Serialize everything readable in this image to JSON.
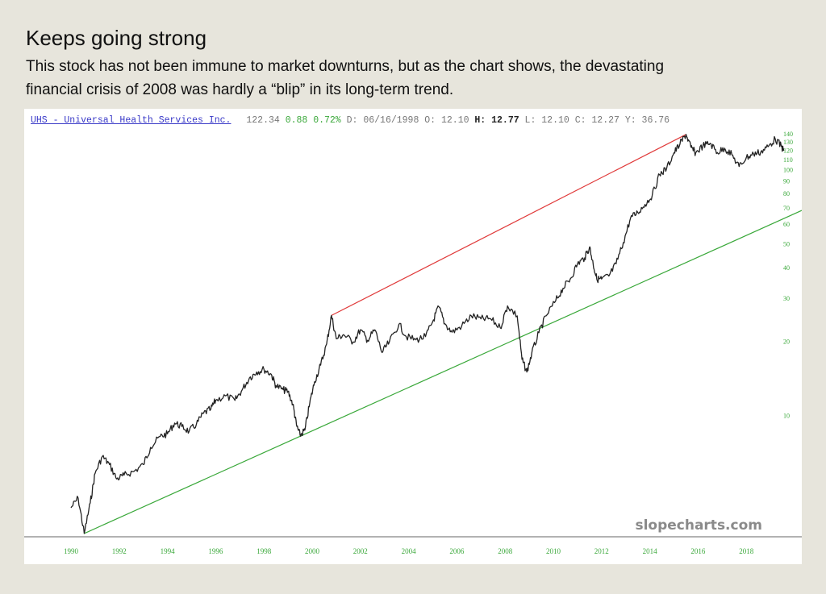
{
  "header": {
    "title": "Keeps going strong",
    "subtitle": "This stock has not been immune to market downturns, but as the chart shows, the devastating financial crisis of 2008 was hardly a “blip” in its long-term trend."
  },
  "ticker": {
    "name": "UHS - Universal Health Services Inc.",
    "last": "122.34",
    "change": "0.88",
    "change_pct": "0.72%",
    "date_label": "D:",
    "date": "06/16/1998",
    "open_label": "O:",
    "open": "12.10",
    "high_label": "H:",
    "high": "12.77",
    "low_label": "L:",
    "low": "12.10",
    "close_label": "C:",
    "close": "12.27",
    "y_label": "Y:",
    "y": "36.76"
  },
  "watermark": "slopecharts.com",
  "colors": {
    "price": "#222222",
    "resistance": "#e03a3a",
    "support": "#3aa83a",
    "axis_labels": "#3aa83a",
    "ticker_link": "#3a3ac8"
  },
  "chart_data": {
    "type": "line",
    "title": "UHS - Universal Health Services Inc.",
    "y_scale": "log",
    "ylim": [
      3.2,
      150
    ],
    "xlim": [
      1989.7,
      2020.3
    ],
    "x_ticks": [
      "1990",
      "1992",
      "1994",
      "1996",
      "1998",
      "2000",
      "2002",
      "2004",
      "2006",
      "2008",
      "2010",
      "2012",
      "2014",
      "2016",
      "2018"
    ],
    "y_ticks": [
      "140",
      "130",
      "120",
      "110",
      "100",
      "90",
      "80",
      "70",
      "60",
      "50",
      "40",
      "30",
      "20",
      "10"
    ],
    "series": [
      {
        "values": [
          [
            1990.0,
            4.2
          ],
          [
            1990.3,
            4.6
          ],
          [
            1990.55,
            3.3
          ],
          [
            1990.8,
            4.4
          ],
          [
            1991.0,
            5.8
          ],
          [
            1991.3,
            6.8
          ],
          [
            1991.6,
            6.3
          ],
          [
            1991.9,
            5.5
          ],
          [
            1992.2,
            5.7
          ],
          [
            1992.6,
            5.9
          ],
          [
            1993.0,
            6.3
          ],
          [
            1993.3,
            7.4
          ],
          [
            1993.7,
            8.2
          ],
          [
            1994.0,
            8.4
          ],
          [
            1994.3,
            9.3
          ],
          [
            1994.6,
            9.0
          ],
          [
            1994.9,
            8.6
          ],
          [
            1995.2,
            9.2
          ],
          [
            1995.5,
            10.2
          ],
          [
            1995.8,
            10.6
          ],
          [
            1996.0,
            11.5
          ],
          [
            1996.4,
            12.0
          ],
          [
            1996.8,
            11.5
          ],
          [
            1997.1,
            12.7
          ],
          [
            1997.4,
            14.2
          ],
          [
            1997.7,
            15.0
          ],
          [
            1998.0,
            15.4
          ],
          [
            1998.3,
            14.7
          ],
          [
            1998.5,
            13.2
          ],
          [
            1998.8,
            12.7
          ],
          [
            1999.0,
            12.5
          ],
          [
            1999.2,
            11.1
          ],
          [
            1999.35,
            9.1
          ],
          [
            1999.5,
            8.3
          ],
          [
            1999.7,
            8.7
          ],
          [
            1999.9,
            11.2
          ],
          [
            2000.1,
            13.7
          ],
          [
            2000.35,
            16.0
          ],
          [
            2000.6,
            19.5
          ],
          [
            2000.8,
            25.5
          ],
          [
            2001.0,
            20.5
          ],
          [
            2001.3,
            21.3
          ],
          [
            2001.7,
            19.9
          ],
          [
            2002.0,
            22.3
          ],
          [
            2002.3,
            20.2
          ],
          [
            2002.6,
            22.3
          ],
          [
            2002.9,
            18.0
          ],
          [
            2003.2,
            19.9
          ],
          [
            2003.6,
            23.5
          ],
          [
            2003.9,
            20.9
          ],
          [
            2004.3,
            20.3
          ],
          [
            2004.7,
            20.9
          ],
          [
            2005.0,
            24.1
          ],
          [
            2005.25,
            27.7
          ],
          [
            2005.5,
            23.6
          ],
          [
            2005.8,
            21.8
          ],
          [
            2006.2,
            23.1
          ],
          [
            2006.6,
            25.4
          ],
          [
            2007.0,
            24.7
          ],
          [
            2007.4,
            24.7
          ],
          [
            2007.8,
            22.7
          ],
          [
            2008.1,
            27.9
          ],
          [
            2008.5,
            25.4
          ],
          [
            2008.7,
            16.9
          ],
          [
            2008.9,
            15.0
          ],
          [
            2009.1,
            17.8
          ],
          [
            2009.4,
            21.7
          ],
          [
            2009.7,
            25.4
          ],
          [
            2010.1,
            29.3
          ],
          [
            2010.4,
            32.9
          ],
          [
            2010.7,
            35.9
          ],
          [
            2011.0,
            41.4
          ],
          [
            2011.3,
            43.8
          ],
          [
            2011.5,
            48.5
          ],
          [
            2011.65,
            41.4
          ],
          [
            2011.8,
            35.9
          ],
          [
            2012.0,
            35.9
          ],
          [
            2012.3,
            36.9
          ],
          [
            2012.6,
            41.4
          ],
          [
            2012.9,
            50.5
          ],
          [
            2013.2,
            63.6
          ],
          [
            2013.5,
            67.0
          ],
          [
            2013.8,
            72.2
          ],
          [
            2014.1,
            78.8
          ],
          [
            2014.4,
            95.6
          ],
          [
            2014.7,
            101.4
          ],
          [
            2015.0,
            117.2
          ],
          [
            2015.25,
            127.4
          ],
          [
            2015.5,
            139.3
          ],
          [
            2015.7,
            123.6
          ],
          [
            2015.9,
            116.9
          ],
          [
            2016.2,
            125.3
          ],
          [
            2016.5,
            128.2
          ],
          [
            2016.8,
            117.5
          ],
          [
            2017.1,
            122.4
          ],
          [
            2017.4,
            115.1
          ],
          [
            2017.7,
            103.1
          ],
          [
            2018.0,
            112.1
          ],
          [
            2018.3,
            116.0
          ],
          [
            2018.6,
            118.2
          ],
          [
            2018.9,
            124.2
          ],
          [
            2019.2,
            133.4
          ],
          [
            2019.45,
            124.6
          ],
          [
            2019.55,
            119.5
          ]
        ]
      },
      {
        "values": [
          [
            2000.8,
            25.5
          ],
          [
            2015.5,
            139.3
          ]
        ]
      },
      {
        "values": [
          [
            1990.55,
            3.3
          ],
          [
            2020.3,
            68.3
          ]
        ]
      }
    ],
    "grid": false
  }
}
